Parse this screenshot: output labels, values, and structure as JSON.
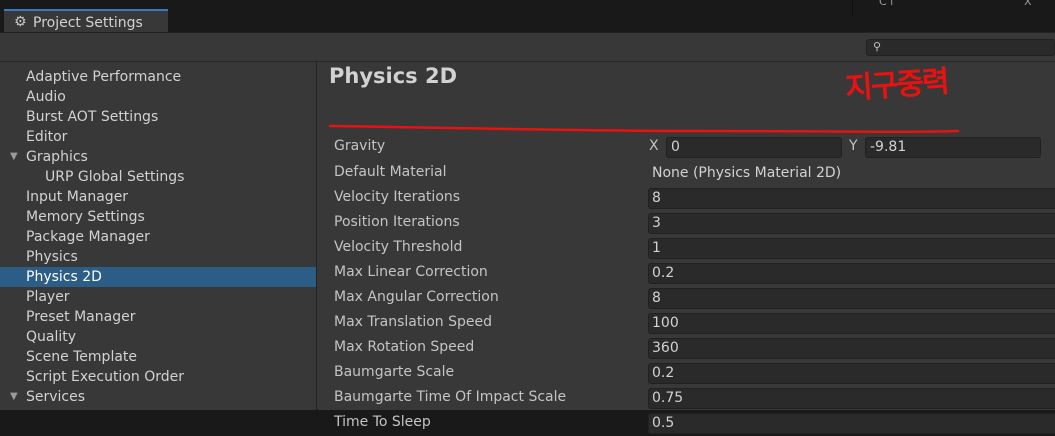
{
  "window": {
    "tab_title": "Project Settings",
    "gear_icon": "⚙"
  },
  "right_panel": {
    "text": "C l",
    "x": "X"
  },
  "search": {
    "icon": "⚲",
    "placeholder": ""
  },
  "sidebar": {
    "items": [
      {
        "label": "Adaptive Performance"
      },
      {
        "label": "Audio"
      },
      {
        "label": "Burst AOT Settings"
      },
      {
        "label": "Editor"
      },
      {
        "label": "Graphics",
        "expanded": true
      },
      {
        "label": "URP Global Settings",
        "child": true
      },
      {
        "label": "Input Manager"
      },
      {
        "label": "Memory Settings"
      },
      {
        "label": "Package Manager"
      },
      {
        "label": "Physics"
      },
      {
        "label": "Physics 2D",
        "selected": true
      },
      {
        "label": "Player"
      },
      {
        "label": "Preset Manager"
      },
      {
        "label": "Quality"
      },
      {
        "label": "Scene Template"
      },
      {
        "label": "Script Execution Order"
      },
      {
        "label": "Services",
        "expanded": true
      }
    ],
    "expanded_arrow": "▼"
  },
  "content": {
    "title": "Physics 2D",
    "gravity": {
      "label": "Gravity",
      "x_label": "X",
      "x_value": "0",
      "y_label": "Y",
      "y_value": "-9.81"
    },
    "rows": [
      {
        "label": "Default Material",
        "value": "None (Physics Material 2D)"
      },
      {
        "label": "Velocity Iterations",
        "value": "8"
      },
      {
        "label": "Position Iterations",
        "value": "3"
      },
      {
        "label": "Velocity Threshold",
        "value": "1"
      },
      {
        "label": "Max Linear Correction",
        "value": "0.2"
      },
      {
        "label": "Max Angular Correction",
        "value": "8"
      },
      {
        "label": "Max Translation Speed",
        "value": "100"
      },
      {
        "label": "Max Rotation Speed",
        "value": "360"
      },
      {
        "label": "Baumgarte Scale",
        "value": "0.2"
      },
      {
        "label": "Baumgarte Time Of Impact Scale",
        "value": "0.75"
      },
      {
        "label": "Time To Sleep",
        "value": "0.5"
      }
    ]
  },
  "annotation": {
    "text": "지구중력",
    "color": "#ea1111"
  }
}
